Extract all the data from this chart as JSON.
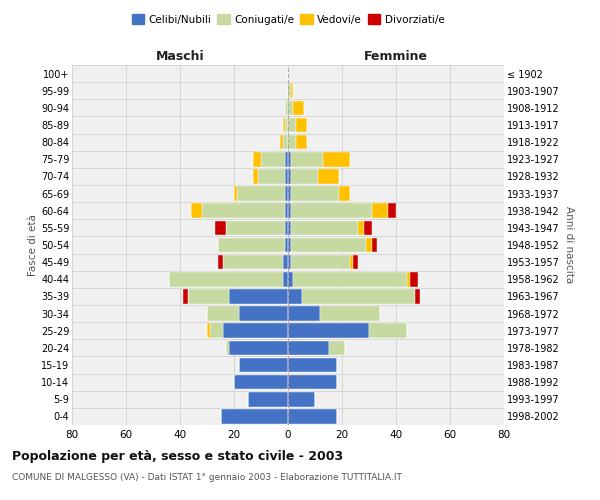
{
  "age_groups": [
    "0-4",
    "5-9",
    "10-14",
    "15-19",
    "20-24",
    "25-29",
    "30-34",
    "35-39",
    "40-44",
    "45-49",
    "50-54",
    "55-59",
    "60-64",
    "65-69",
    "70-74",
    "75-79",
    "80-84",
    "85-89",
    "90-94",
    "95-99",
    "100+"
  ],
  "birth_years": [
    "1998-2002",
    "1993-1997",
    "1988-1992",
    "1983-1987",
    "1978-1982",
    "1973-1977",
    "1968-1972",
    "1963-1967",
    "1958-1962",
    "1953-1957",
    "1948-1952",
    "1943-1947",
    "1938-1942",
    "1933-1937",
    "1928-1932",
    "1923-1927",
    "1918-1922",
    "1913-1917",
    "1908-1912",
    "1903-1907",
    "≤ 1902"
  ],
  "colors": {
    "celibi": "#4472C4",
    "coniugati": "#C5D9A0",
    "vedovi": "#FFC000",
    "divorziati": "#CC0000"
  },
  "maschi": {
    "celibi": [
      25,
      15,
      20,
      18,
      22,
      24,
      18,
      22,
      2,
      2,
      1,
      1,
      1,
      1,
      1,
      1,
      0,
      0,
      0,
      0,
      0
    ],
    "coniugati": [
      0,
      0,
      0,
      0,
      1,
      5,
      12,
      15,
      42,
      22,
      25,
      22,
      31,
      18,
      10,
      9,
      2,
      1,
      1,
      0,
      0
    ],
    "vedovi": [
      0,
      0,
      0,
      0,
      0,
      1,
      0,
      0,
      0,
      0,
      0,
      0,
      4,
      1,
      2,
      3,
      1,
      1,
      0,
      0,
      0
    ],
    "divorziati": [
      0,
      0,
      0,
      0,
      0,
      0,
      0,
      2,
      0,
      2,
      0,
      4,
      0,
      0,
      0,
      0,
      0,
      0,
      0,
      0,
      0
    ]
  },
  "femmine": {
    "celibi": [
      18,
      10,
      18,
      18,
      15,
      30,
      12,
      5,
      2,
      1,
      1,
      1,
      1,
      1,
      1,
      1,
      0,
      0,
      0,
      0,
      0
    ],
    "coniugati": [
      0,
      0,
      0,
      0,
      6,
      14,
      22,
      42,
      42,
      22,
      28,
      25,
      30,
      18,
      10,
      12,
      3,
      3,
      2,
      1,
      0
    ],
    "vedovi": [
      0,
      0,
      0,
      0,
      0,
      0,
      0,
      0,
      1,
      1,
      2,
      2,
      6,
      4,
      8,
      10,
      4,
      4,
      4,
      1,
      0
    ],
    "divorziati": [
      0,
      0,
      0,
      0,
      0,
      0,
      0,
      2,
      3,
      2,
      2,
      3,
      3,
      0,
      0,
      0,
      0,
      0,
      0,
      0,
      0
    ]
  },
  "xlim": 80,
  "title": "Popolazione per età, sesso e stato civile - 2003",
  "subtitle": "COMUNE DI MALGESSO (VA) - Dati ISTAT 1° gennaio 2003 - Elaborazione TUTTITALIA.IT",
  "xlabel_left": "Maschi",
  "xlabel_right": "Femmine",
  "ylabel_left": "Fasce di età",
  "ylabel_right": "Anni di nascita",
  "background": "#f0f0f0",
  "grid_color": "#cccccc"
}
